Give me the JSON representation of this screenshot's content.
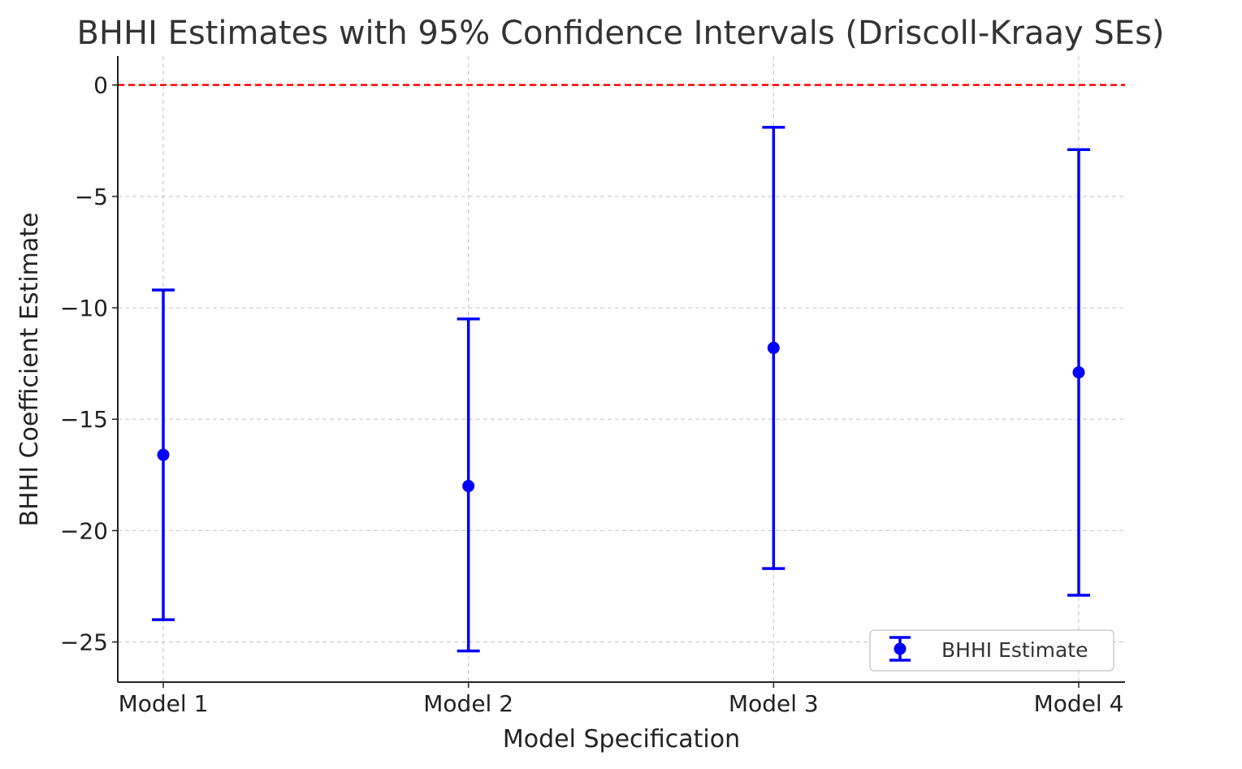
{
  "chart_data": {
    "type": "errorbar",
    "title": "BHHI Estimates with 95% Confidence Intervals (Driscoll-Kraay SEs)",
    "xlabel": "Model Specification",
    "ylabel": "BHHI Coefficient Estimate",
    "categories": [
      "Model 1",
      "Model 2",
      "Model 3",
      "Model 4"
    ],
    "series": [
      {
        "name": "BHHI Estimate",
        "values": [
          -16.6,
          -18.0,
          -11.8,
          -12.9
        ],
        "ci_lower": [
          -24.0,
          -25.4,
          -21.7,
          -22.9
        ],
        "ci_upper": [
          -9.2,
          -10.5,
          -1.9,
          -2.9
        ],
        "color": "#0000ff"
      }
    ],
    "ylim": [
      -26.8,
      1.3
    ],
    "yticks": [
      0,
      -5,
      -10,
      -15,
      -20,
      -25
    ],
    "ytick_labels": [
      "0",
      "−5",
      "−10",
      "−15",
      "−20",
      "−25"
    ],
    "reference_line": {
      "y": 0,
      "color": "#ff0000",
      "style": "dashed"
    },
    "grid": true,
    "legend": {
      "position": "lower right"
    }
  }
}
